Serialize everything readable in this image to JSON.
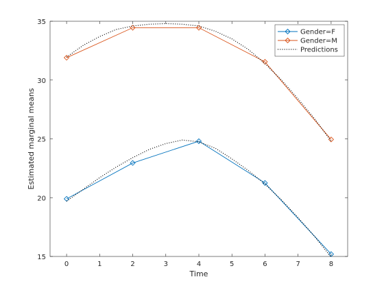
{
  "chart_data": {
    "type": "line",
    "xlabel": "Time",
    "ylabel": "Estimated marginal means",
    "xlim": [
      -0.5,
      8.5
    ],
    "ylim": [
      15,
      35
    ],
    "xticks": [
      0,
      1,
      2,
      3,
      4,
      5,
      6,
      7,
      8
    ],
    "yticks": [
      15,
      20,
      25,
      30,
      35
    ],
    "grid": false,
    "legend_position": "top-right",
    "series": [
      {
        "name": "Gender=F",
        "style": "solid",
        "marker": "diamond",
        "color": "#0072BD",
        "x": [
          0,
          2,
          4,
          6,
          8
        ],
        "y": [
          19.9,
          22.95,
          24.8,
          21.25,
          15.2
        ]
      },
      {
        "name": "Gender=M",
        "style": "solid",
        "marker": "diamond",
        "color": "#D95319",
        "x": [
          0,
          2,
          4,
          6,
          8
        ],
        "y": [
          31.9,
          34.45,
          34.45,
          31.55,
          24.95
        ]
      },
      {
        "name": "Predictions",
        "style": "dotted",
        "marker": "none",
        "color": "#000000",
        "x": [
          0,
          0.5,
          1,
          1.5,
          2,
          2.5,
          3,
          3.5,
          4,
          4.5,
          5,
          5.5,
          6,
          6.5,
          7,
          7.5,
          8
        ],
        "y": [
          19.7,
          20.7,
          21.7,
          22.6,
          23.4,
          24.1,
          24.6,
          24.9,
          24.75,
          24.2,
          23.3,
          22.3,
          21.15,
          19.8,
          18.3,
          16.7,
          14.95
        ]
      },
      {
        "style": "dotted",
        "marker": "none",
        "color": "#000000",
        "x": [
          0,
          0.5,
          1,
          1.5,
          2,
          2.5,
          3,
          3.5,
          4,
          4.5,
          5,
          5.5,
          6,
          6.5,
          7,
          7.5,
          8
        ],
        "y": [
          31.95,
          32.95,
          33.7,
          34.3,
          34.6,
          34.75,
          34.8,
          34.75,
          34.6,
          34.15,
          33.5,
          32.6,
          31.4,
          30.0,
          28.4,
          26.7,
          24.8
        ]
      }
    ]
  }
}
